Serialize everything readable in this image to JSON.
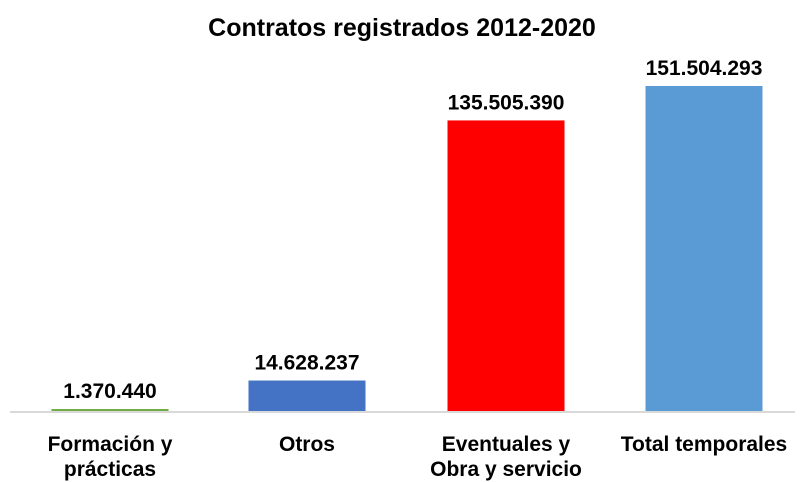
{
  "chart_data": {
    "type": "bar",
    "title": "Contratos registrados 2012-2020",
    "xlabel": "",
    "ylabel": "",
    "ylim": [
      0,
      151504293
    ],
    "grid": false,
    "legend": "none",
    "categories": [
      "Formación y prácticas",
      "Otros",
      "Eventuales y Obra y servicio",
      "Total temporales"
    ],
    "category_label_lines": [
      [
        "Formación y",
        "prácticas"
      ],
      [
        "Otros"
      ],
      [
        "Eventuales y",
        "Obra y servicio"
      ],
      [
        "Total temporales"
      ]
    ],
    "values": [
      1370440,
      14628237,
      135505390,
      151504293
    ],
    "data_labels": [
      "1.370.440",
      "14.628.237",
      "135.505.390",
      "151.504.293"
    ],
    "colors": [
      "#70AD47",
      "#4472C4",
      "#FF0000",
      "#5B9BD5"
    ],
    "axis_color": "#D9D9D9"
  }
}
